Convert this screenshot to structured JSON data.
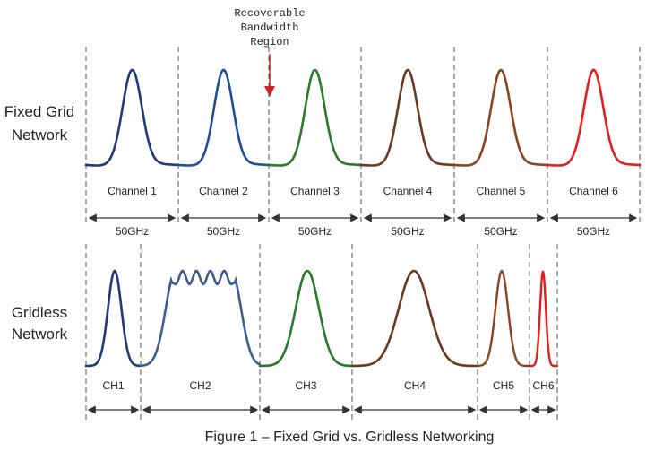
{
  "annotation": {
    "lines": [
      "Recoverable",
      "Bandwidth",
      "Region"
    ]
  },
  "rows": {
    "fixed": {
      "label_lines": [
        "Fixed Grid",
        "Network"
      ],
      "channels": [
        {
          "label": "Channel 1",
          "bandwidth": "50GHz",
          "color": "#1f3a7a"
        },
        {
          "label": "Channel 2",
          "bandwidth": "50GHz",
          "color": "#1f4f96"
        },
        {
          "label": "Channel 3",
          "bandwidth": "50GHz",
          "color": "#2a7a2a"
        },
        {
          "label": "Channel 4",
          "bandwidth": "50GHz",
          "color": "#6b3a1e"
        },
        {
          "label": "Channel 5",
          "bandwidth": "50GHz",
          "color": "#8a4422"
        },
        {
          "label": "Channel 6",
          "bandwidth": "50GHz",
          "color": "#e02020"
        }
      ]
    },
    "gridless": {
      "label_lines": [
        "Gridless",
        "Network"
      ],
      "channels": [
        {
          "label": "CH1",
          "color": "#1f3a7a"
        },
        {
          "label": "CH2",
          "color": "#3d5f8f"
        },
        {
          "label": "CH3",
          "color": "#2a7a2a"
        },
        {
          "label": "CH4",
          "color": "#6b3a1e"
        },
        {
          "label": "CH5",
          "color": "#8a4422"
        },
        {
          "label": "CH6",
          "color": "#e02020"
        }
      ]
    }
  },
  "caption": "Figure 1 – Fixed Grid vs. Gridless Networking"
}
